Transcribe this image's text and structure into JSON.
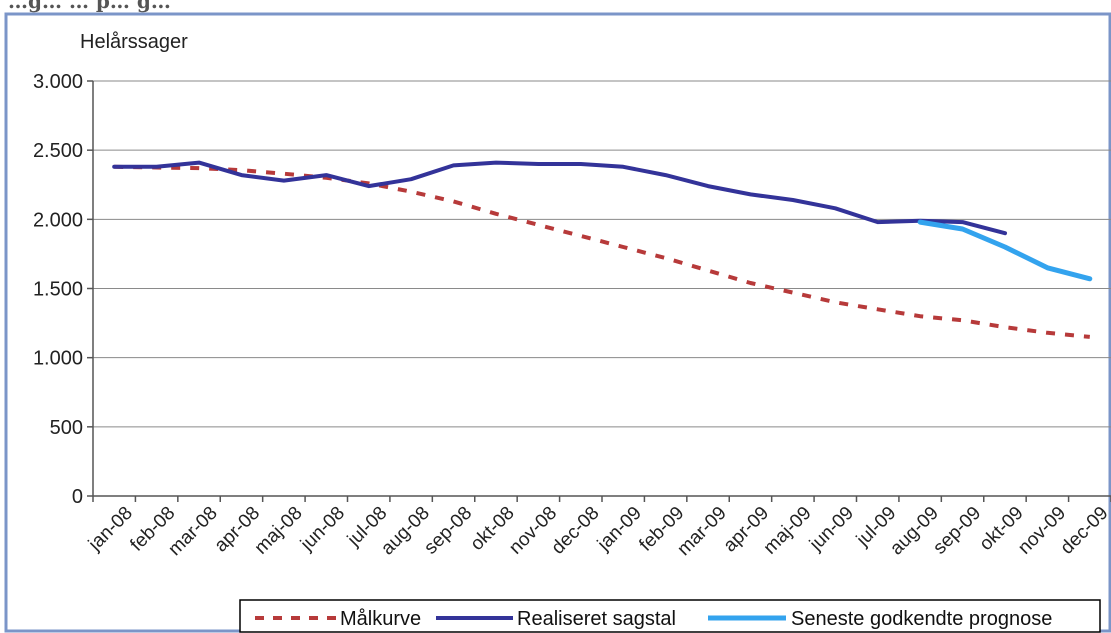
{
  "header_text": "…g… … p… g…",
  "chart_data": {
    "type": "line",
    "ylabel": "Helårssager",
    "xlabel": "",
    "ylim": [
      0,
      3000
    ],
    "yticks": [
      0,
      500,
      1000,
      1500,
      2000,
      2500,
      3000
    ],
    "ytick_labels": [
      "0",
      "500",
      "1.000",
      "1.500",
      "2.000",
      "2.500",
      "3.000"
    ],
    "categories": [
      "jan-08",
      "feb-08",
      "mar-08",
      "apr-08",
      "maj-08",
      "jun-08",
      "jul-08",
      "aug-08",
      "sep-08",
      "okt-08",
      "nov-08",
      "dec-08",
      "jan-09",
      "feb-09",
      "mar-09",
      "apr-09",
      "maj-09",
      "jun-09",
      "jul-09",
      "aug-09",
      "sep-09",
      "okt-09",
      "nov-09",
      "dec-09"
    ],
    "grid": true,
    "legend_position": "bottom",
    "series": [
      {
        "name": "Målkurve",
        "style": "dashed",
        "color": "#b73a3a",
        "values": [
          2380,
          2375,
          2370,
          2355,
          2330,
          2300,
          2260,
          2200,
          2130,
          2040,
          1960,
          1880,
          1800,
          1720,
          1630,
          1540,
          1470,
          1400,
          1350,
          1300,
          1270,
          1220,
          1180,
          1150
        ]
      },
      {
        "name": "Realiseret sagstal",
        "style": "solid",
        "color": "#333399",
        "values": [
          2380,
          2380,
          2410,
          2320,
          2280,
          2320,
          2240,
          2290,
          2390,
          2410,
          2400,
          2400,
          2380,
          2320,
          2240,
          2180,
          2140,
          2080,
          1980,
          1990,
          1980,
          1900,
          null,
          null
        ]
      },
      {
        "name": "Seneste godkendte prognose",
        "style": "solid",
        "color": "#33a3ee",
        "values": [
          null,
          null,
          null,
          null,
          null,
          null,
          null,
          null,
          null,
          null,
          null,
          null,
          null,
          null,
          null,
          null,
          null,
          null,
          null,
          1980,
          1930,
          1800,
          1650,
          1570
        ]
      }
    ]
  }
}
